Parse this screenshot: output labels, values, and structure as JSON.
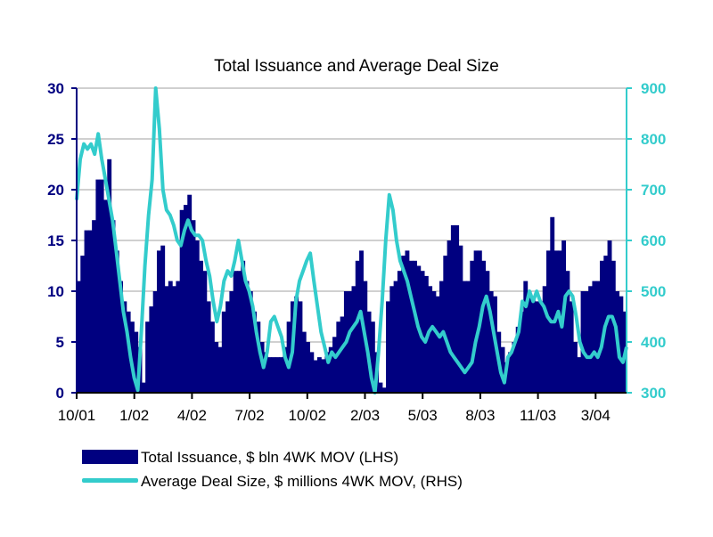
{
  "chart_data": {
    "type": "bar+line",
    "title": "Total Issuance and Average Deal Size",
    "xlabel": "",
    "ylabel_left": "",
    "ylabel_right": "",
    "x_tick_labels": [
      "10/01",
      "1/02",
      "4/02",
      "7/02",
      "10/02",
      "2/03",
      "5/03",
      "8/03",
      "11/03",
      "3/04"
    ],
    "ylim_left": [
      0,
      30
    ],
    "yticks_left": [
      "0",
      "5",
      "10",
      "15",
      "20",
      "25",
      "30"
    ],
    "ylim_right": [
      300,
      900
    ],
    "yticks_right": [
      "300",
      "400",
      "500",
      "600",
      "700",
      "800",
      "900"
    ],
    "grid": "horizontal",
    "legend_position": "bottom-left",
    "colors": {
      "bars": "#000080",
      "line": "#33CCCC",
      "grid": "#C0C0C0"
    },
    "series": [
      {
        "name": "Total Issuance, $ bln 4WK MOV (LHS)",
        "type": "bar",
        "axis": "left",
        "values": [
          11,
          13.5,
          16,
          16,
          17,
          21,
          21,
          19,
          23,
          17,
          14,
          11,
          9,
          8,
          7,
          6,
          4.5,
          1,
          7,
          8.5,
          10,
          14,
          14.5,
          10.5,
          11,
          10.5,
          11,
          18,
          18.5,
          19.5,
          17,
          15,
          13,
          12,
          9,
          7,
          5,
          4.5,
          8,
          9,
          10,
          12,
          12,
          13,
          11,
          10,
          8,
          7,
          5,
          4,
          3.5,
          3.5,
          3.5,
          3.5,
          4.5,
          7,
          9,
          9.5,
          9,
          6,
          5,
          4,
          3.2,
          3.5,
          3.3,
          4,
          4.5,
          5.5,
          7,
          7.5,
          10,
          10,
          10.5,
          13,
          14,
          11,
          8,
          7,
          4,
          1,
          0.5,
          9,
          10.5,
          11,
          12,
          13.5,
          14,
          13,
          13,
          12.5,
          12,
          11.5,
          10.5,
          10,
          9.5,
          11,
          13.5,
          15,
          16.5,
          16.5,
          14.5,
          11,
          11,
          13,
          14,
          14,
          13,
          12,
          10,
          9.5,
          6,
          4.5,
          3,
          4,
          5,
          6.5,
          8,
          11,
          10,
          9.5,
          9,
          9,
          10.5,
          14,
          17.3,
          14,
          14,
          15,
          12,
          9,
          5,
          3.5,
          10,
          10,
          10.5,
          11,
          11,
          13,
          13.5,
          15,
          13,
          10,
          9.5,
          8
        ]
      },
      {
        "name": "Average Deal Size, $ millions 4WK MOV, (RHS)",
        "type": "line",
        "axis": "right",
        "values": [
          680,
          760,
          790,
          780,
          790,
          770,
          810,
          760,
          720,
          680,
          640,
          580,
          520,
          460,
          420,
          370,
          330,
          305,
          420,
          550,
          650,
          720,
          900,
          820,
          700,
          660,
          650,
          630,
          600,
          590,
          620,
          640,
          620,
          610,
          610,
          600,
          560,
          530,
          480,
          440,
          470,
          520,
          540,
          530,
          560,
          600,
          560,
          520,
          500,
          470,
          420,
          380,
          350,
          380,
          440,
          450,
          430,
          410,
          370,
          350,
          380,
          480,
          520,
          540,
          560,
          575,
          520,
          470,
          420,
          390,
          360,
          380,
          370,
          380,
          390,
          400,
          420,
          430,
          440,
          460,
          420,
          380,
          330,
          300,
          380,
          480,
          600,
          690,
          660,
          600,
          560,
          540,
          520,
          490,
          460,
          430,
          410,
          400,
          420,
          430,
          420,
          410,
          420,
          400,
          380,
          370,
          360,
          350,
          340,
          350,
          360,
          400,
          430,
          470,
          490,
          460,
          420,
          380,
          340,
          320,
          370,
          380,
          400,
          420,
          480,
          470,
          500,
          480,
          500,
          480,
          470,
          450,
          440,
          440,
          460,
          430,
          490,
          500,
          490,
          450,
          400,
          380,
          370,
          370,
          380,
          370,
          390,
          430,
          450,
          450,
          430,
          370,
          360,
          390
        ]
      }
    ]
  }
}
